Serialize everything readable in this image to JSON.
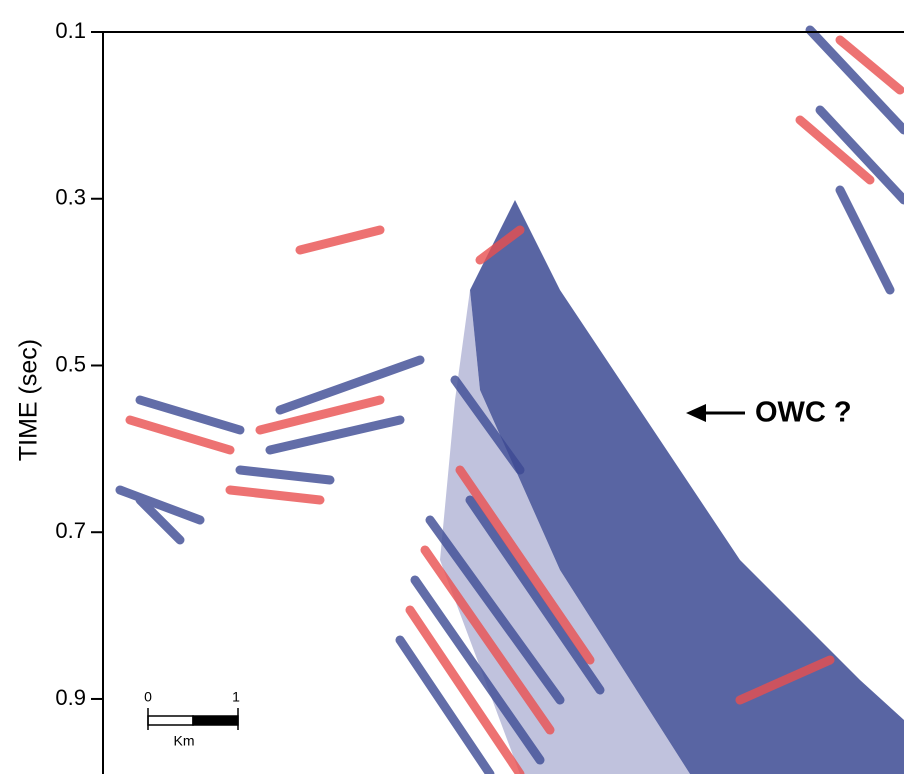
{
  "y_axis": {
    "label": "TIME (sec)",
    "ylim": [
      0.1,
      0.99
    ],
    "ticks": [
      0.1,
      0.3,
      0.5,
      0.7,
      0.9
    ]
  },
  "annotation": "OWC ?",
  "scale_bar": {
    "ticks": [
      0,
      1
    ],
    "label": "Km"
  }
}
